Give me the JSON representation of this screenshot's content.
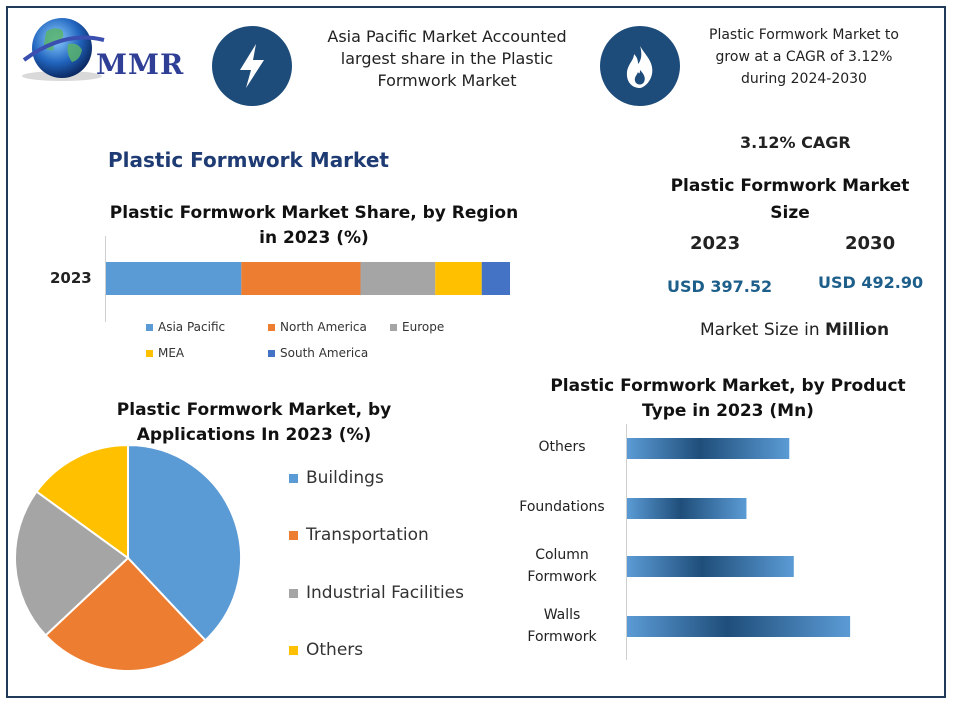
{
  "brand": {
    "logo_text": "MMR"
  },
  "headline_left": "Asia Pacific Market Accounted largest share in the Plastic Formwork Market",
  "headline_right": "Plastic Formwork Market to grow at a CAGR of 3.12% during 2024-2030",
  "icons": {
    "left": "lightning-bolt-icon",
    "right": "flame-icon"
  },
  "main_title": "Plastic Formwork Market",
  "cagr_label": "3.12% CAGR",
  "market_size": {
    "title": "Plastic Formwork Market Size",
    "year_1": "2023",
    "year_2": "2030",
    "value_1": "USD 397.52",
    "value_2": "USD 492.90",
    "unit_prefix": "Market Size in ",
    "unit_bold": "Million"
  },
  "colors": {
    "navy": "#1e4c7a",
    "blue": "#5b9bd5",
    "orange": "#ed7d31",
    "gray": "#a5a5a5",
    "yellow": "#ffc000",
    "dark_blue": "#4472c4"
  },
  "chart_data": [
    {
      "type": "bar",
      "orientation": "horizontal-stacked",
      "title": "Plastic Formwork Market Share, by Region in 2023 (%)",
      "categories": [
        "2023"
      ],
      "series": [
        {
          "name": "Asia Pacific",
          "values": [
            33.5
          ],
          "color": "#5b9bd5"
        },
        {
          "name": "North America",
          "values": [
            29.5
          ],
          "color": "#ed7d31"
        },
        {
          "name": "Europe",
          "values": [
            18.5
          ],
          "color": "#a5a5a5"
        },
        {
          "name": "MEA",
          "values": [
            11.5
          ],
          "color": "#ffc000"
        },
        {
          "name": "South America",
          "values": [
            7.0
          ],
          "color": "#4472c4"
        }
      ],
      "legend": "bottom"
    },
    {
      "type": "pie",
      "title": "Plastic Formwork Market, by Applications In 2023 (%)",
      "labels": [
        "Buildings",
        "Transportation",
        "Industrial Facilities",
        "Others"
      ],
      "values": [
        38,
        25,
        22,
        15
      ],
      "colors": [
        "#5b9bd5",
        "#ed7d31",
        "#a5a5a5",
        "#ffc000"
      ],
      "legend": "right"
    },
    {
      "type": "bar",
      "orientation": "horizontal",
      "title": "Plastic Formwork Market, by Product Type in 2023 (Mn)",
      "categories": [
        "Others",
        "Foundations",
        "Column Formwork",
        "Walls Formwork"
      ],
      "category_lines": [
        [
          "Others"
        ],
        [
          "Foundations"
        ],
        [
          "Column",
          "Formwork"
        ],
        [
          "Walls",
          "Formwork"
        ]
      ],
      "values": [
        72,
        53,
        74,
        99
      ],
      "xlim": [
        0,
        130
      ]
    }
  ]
}
